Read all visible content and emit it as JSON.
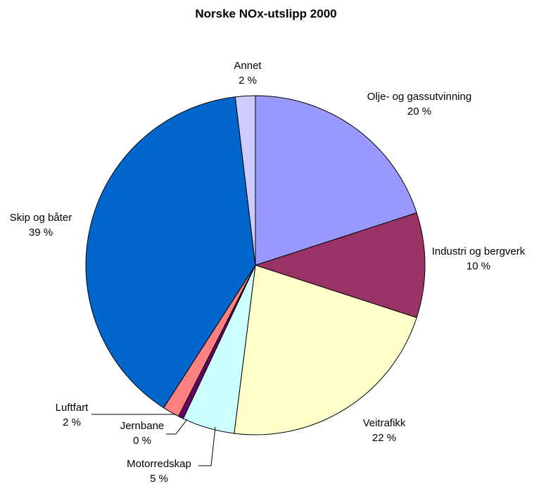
{
  "chart_data": {
    "type": "pie",
    "title": "Norske NOx-utslipp 2000",
    "unit": "%",
    "slices": [
      {
        "name": "Olje- og gassutvinning",
        "value": 20,
        "value_label": "20 %",
        "color": "#9999FF"
      },
      {
        "name": "Industri og bergverk",
        "value": 10,
        "value_label": "10 %",
        "color": "#993366"
      },
      {
        "name": "Veitrafikk",
        "value": 22,
        "value_label": "22 %",
        "color": "#FFFFCC"
      },
      {
        "name": "Motorredskap",
        "value": 5,
        "value_label": "5 %",
        "color": "#CCFFFF"
      },
      {
        "name": "Jernbane",
        "value": 0.5,
        "value_label": "0 %",
        "color": "#660066"
      },
      {
        "name": "Luftfart",
        "value": 1.6,
        "value_label": "2 %",
        "color": "#FF8080"
      },
      {
        "name": "Skip og båter",
        "value": 39,
        "value_label": "39 %",
        "color": "#0066CC"
      },
      {
        "name": "Annet",
        "value": 1.9,
        "value_label": "2 %",
        "color": "#CCCCFF"
      }
    ],
    "start_angle_deg": 0,
    "direction": "clockwise",
    "legend": "none"
  }
}
